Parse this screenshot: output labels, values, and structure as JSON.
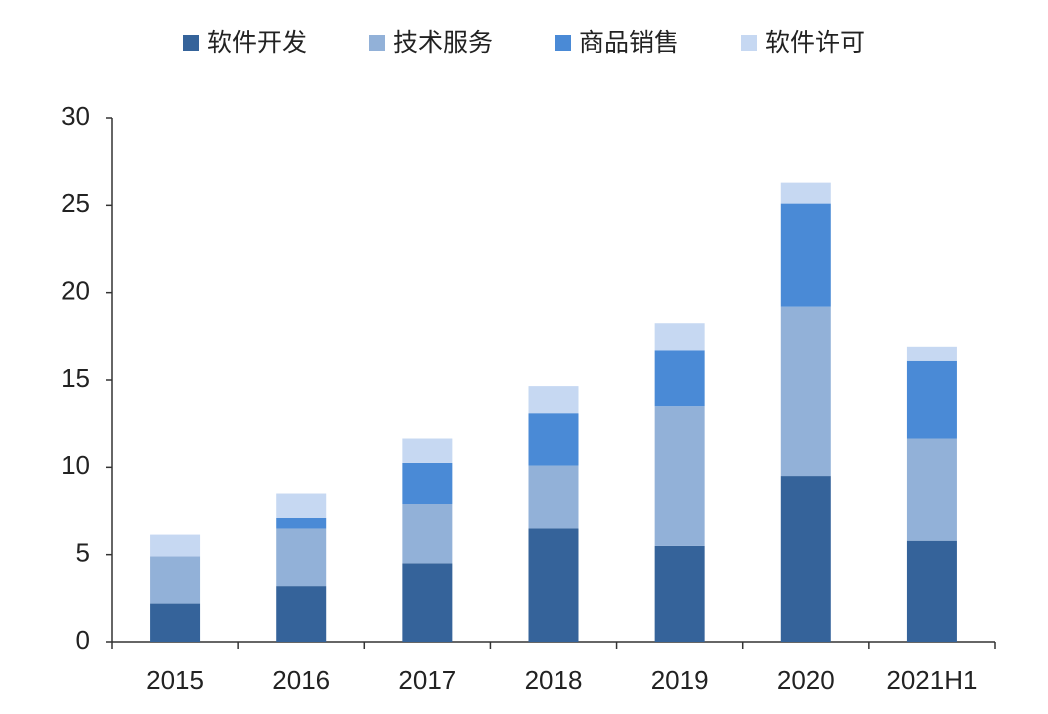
{
  "chart_data": {
    "type": "stacked_bar",
    "categories": [
      "2015",
      "2016",
      "2017",
      "2018",
      "2019",
      "2020",
      "2021H1"
    ],
    "series": [
      {
        "name": "软件开发",
        "color": "#35639a",
        "values": [
          2.2,
          3.2,
          4.5,
          6.5,
          5.5,
          9.5,
          5.8
        ]
      },
      {
        "name": "技术服务",
        "color": "#92b1d8",
        "values": [
          2.7,
          3.3,
          3.4,
          3.6,
          8.0,
          9.7,
          5.85
        ]
      },
      {
        "name": "商品销售",
        "color": "#4a8ad6",
        "values": [
          0,
          0.6,
          2.35,
          3.0,
          3.2,
          5.9,
          4.45
        ]
      },
      {
        "name": "软件许可",
        "color": "#c6d8f2",
        "values": [
          1.25,
          1.4,
          1.4,
          1.55,
          1.55,
          1.2,
          0.8
        ]
      }
    ],
    "ylim": [
      0,
      30
    ],
    "yticks": [
      0,
      5,
      10,
      15,
      20,
      25,
      30
    ],
    "grid": false
  }
}
